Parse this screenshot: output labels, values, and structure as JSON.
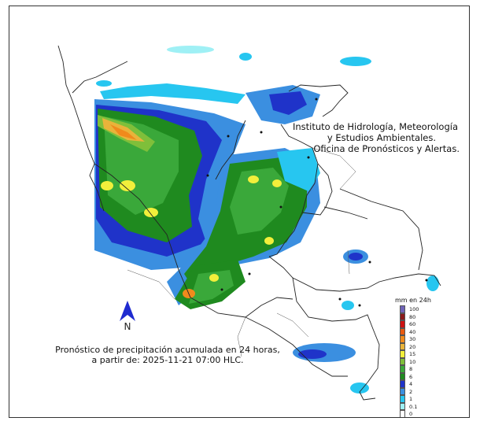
{
  "institution": {
    "line1": "Instituto de Hidrología, Meteorología",
    "line2": "y Estudios Ambientales.",
    "line3": "Oficina de Pronósticos y Alertas."
  },
  "caption": {
    "line1": "Pronóstico de precipitación acumulada en 24 horas,",
    "line2": "a partir de: 2025-11-21 07:00 HLC."
  },
  "north_label": "N",
  "legend": {
    "title": "mm en 24h",
    "items": [
      {
        "label": "100",
        "color": "#6f63b8"
      },
      {
        "label": "80",
        "color": "#8b1a1a"
      },
      {
        "label": "60",
        "color": "#cc1111"
      },
      {
        "label": "40",
        "color": "#e85a10"
      },
      {
        "label": "30",
        "color": "#f08a1c"
      },
      {
        "label": "20",
        "color": "#e9b33a"
      },
      {
        "label": "15",
        "color": "#f2ef3b"
      },
      {
        "label": "10",
        "color": "#7fbf3a"
      },
      {
        "label": "8",
        "color": "#3aa83a"
      },
      {
        "label": "6",
        "color": "#1f8a1f"
      },
      {
        "label": "4",
        "color": "#1f33c9"
      },
      {
        "label": "2",
        "color": "#3b8fe0"
      },
      {
        "label": "1",
        "color": "#27c6f0"
      },
      {
        "label": "0.1",
        "color": "#9ff0f5"
      },
      {
        "label": "0",
        "color": "#ffffff"
      }
    ]
  }
}
